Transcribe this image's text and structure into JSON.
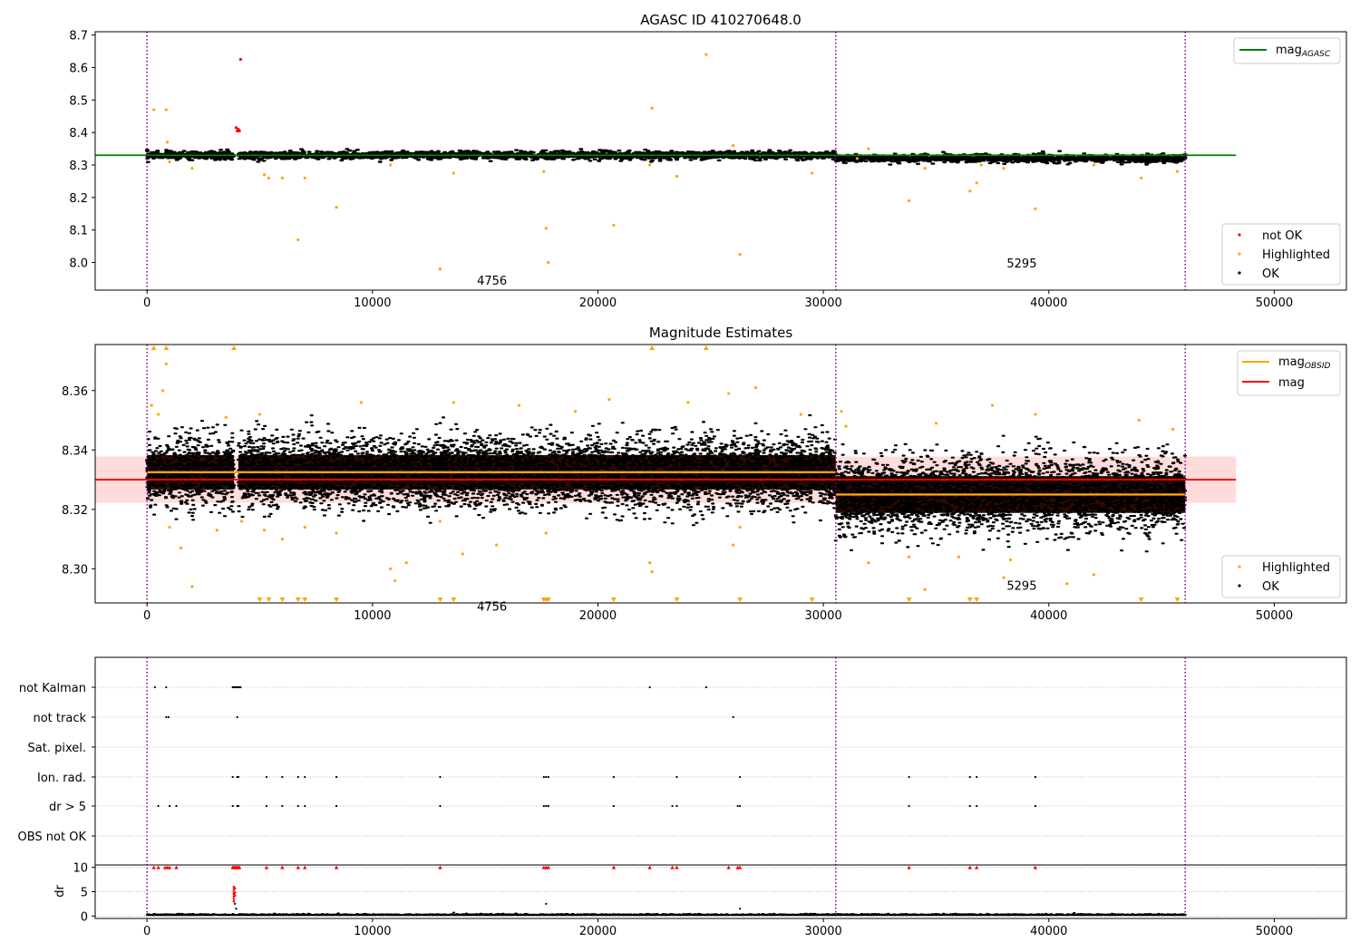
{
  "colors": {
    "ok": "#000000",
    "highlighted": "#ffa500",
    "not_ok": "#ff0000",
    "mag_agasc": "#008000",
    "mag_obsid": "#ffa500",
    "mag": "#ff0000",
    "band": "#ffc0c0",
    "vline": "#800080",
    "grid": "#b0b0b0"
  },
  "chart_data": [
    {
      "type": "scatter",
      "title": "AGASC ID 410270648.0",
      "xlim": [
        -2300,
        53200
      ],
      "ylim": [
        7.915,
        8.71
      ],
      "x_ticks": [
        0,
        10000,
        20000,
        30000,
        40000,
        50000
      ],
      "y_ticks": [
        8.0,
        8.1,
        8.2,
        8.3,
        8.4,
        8.5,
        8.6,
        8.7
      ],
      "obs_boundaries": [
        0,
        30550,
        46050
      ],
      "obs_annotations": [
        {
          "x": 15300,
          "y": 7.945,
          "text": "4756"
        },
        {
          "x": 38800,
          "y": 7.998,
          "text": "5295"
        }
      ],
      "lines": [
        {
          "name": "mag_AGASC",
          "value": 8.33,
          "x_range": [
            -2300,
            48300
          ]
        }
      ],
      "ok_band": {
        "segments": [
          {
            "x": [
              0,
              3850
            ],
            "y": [
              8.315,
              8.345
            ]
          },
          {
            "x": [
              4050,
              30550
            ],
            "y": [
              8.315,
              8.345
            ]
          },
          {
            "x": [
              30550,
              46050
            ],
            "y": [
              8.305,
              8.335
            ]
          }
        ]
      },
      "not_ok": [
        [
          4000,
          8.405
        ],
        [
          4050,
          8.41
        ],
        [
          4100,
          8.405
        ],
        [
          4150,
          8.625
        ],
        [
          3950,
          8.415
        ]
      ],
      "highlighted": [
        [
          300,
          8.47
        ],
        [
          850,
          8.47
        ],
        [
          900,
          8.37
        ],
        [
          1000,
          8.31
        ],
        [
          2000,
          8.29
        ],
        [
          5200,
          8.27
        ],
        [
          5400,
          8.26
        ],
        [
          6000,
          8.26
        ],
        [
          6700,
          8.07
        ],
        [
          7000,
          8.26
        ],
        [
          8400,
          8.17
        ],
        [
          10800,
          8.3
        ],
        [
          13000,
          7.98
        ],
        [
          13600,
          8.275
        ],
        [
          17600,
          8.28
        ],
        [
          17700,
          8.105
        ],
        [
          17800,
          8.0
        ],
        [
          20700,
          8.115
        ],
        [
          22300,
          8.3
        ],
        [
          22400,
          8.475
        ],
        [
          23500,
          8.265
        ],
        [
          24800,
          8.64
        ],
        [
          26000,
          8.36
        ],
        [
          26300,
          8.025
        ],
        [
          29500,
          8.275
        ],
        [
          31500,
          8.32
        ],
        [
          32000,
          8.35
        ],
        [
          33800,
          8.19
        ],
        [
          34500,
          8.29
        ],
        [
          36500,
          8.22
        ],
        [
          36800,
          8.245
        ],
        [
          37000,
          8.3
        ],
        [
          38000,
          8.29
        ],
        [
          39400,
          8.165
        ],
        [
          42000,
          8.3
        ],
        [
          44100,
          8.26
        ],
        [
          45700,
          8.28
        ]
      ],
      "legends": [
        {
          "placement": "top-right",
          "entries": [
            {
              "label": "mag",
              "subscript": "AGASC"
            }
          ]
        },
        {
          "placement": "bottom-right",
          "entries": [
            {
              "label": "not OK"
            },
            {
              "label": "Highlighted"
            },
            {
              "label": "OK"
            }
          ]
        }
      ]
    },
    {
      "type": "scatter",
      "title": "Magnitude Estimates",
      "xlim": [
        -2300,
        53200
      ],
      "ylim": [
        8.2885,
        8.3755
      ],
      "x_ticks": [
        0,
        10000,
        20000,
        30000,
        40000,
        50000
      ],
      "y_ticks": [
        8.3,
        8.32,
        8.34,
        8.36
      ],
      "y_tick_labels": [
        "8.30",
        "8.32",
        "8.34",
        "8.36"
      ],
      "obs_boundaries": [
        0,
        30550,
        46050
      ],
      "obs_annotations": [
        {
          "x": 15300,
          "y": 8.2875,
          "text": "4756"
        },
        {
          "x": 38800,
          "y": 8.2945,
          "text": "5295"
        }
      ],
      "band": {
        "x": [
          -2300,
          48300
        ],
        "y": [
          8.3222,
          8.3378
        ]
      },
      "lines": [
        {
          "name": "mag",
          "value": 8.33,
          "x_range": [
            -2300,
            48300
          ]
        }
      ],
      "obsid_mag": [
        {
          "x": [
            0,
            30550
          ],
          "value": 8.3325
        },
        {
          "x": [
            30550,
            46050
          ],
          "value": 8.325
        }
      ],
      "ok_clouds": [
        {
          "x": [
            0,
            3850
          ],
          "center": 8.3325,
          "sigma": 0.0058,
          "min": 8.313,
          "max": 8.352
        },
        {
          "x": [
            4050,
            30550
          ],
          "center": 8.3325,
          "sigma": 0.0058,
          "min": 8.313,
          "max": 8.352
        },
        {
          "x": [
            30550,
            46050
          ],
          "center": 8.325,
          "sigma": 0.0062,
          "min": 8.305,
          "max": 8.347
        }
      ],
      "highlighted": [
        [
          200,
          8.355
        ],
        [
          500,
          8.352
        ],
        [
          700,
          8.36
        ],
        [
          850,
          8.369
        ],
        [
          1000,
          8.314
        ],
        [
          1500,
          8.307
        ],
        [
          2000,
          8.294
        ],
        [
          3100,
          8.313
        ],
        [
          3500,
          8.351
        ],
        [
          4200,
          8.316
        ],
        [
          5000,
          8.352
        ],
        [
          5200,
          8.313
        ],
        [
          6000,
          8.31
        ],
        [
          7000,
          8.314
        ],
        [
          8400,
          8.312
        ],
        [
          9500,
          8.356
        ],
        [
          10800,
          8.3
        ],
        [
          11000,
          8.296
        ],
        [
          11500,
          8.302
        ],
        [
          13000,
          8.316
        ],
        [
          13600,
          8.356
        ],
        [
          14000,
          8.305
        ],
        [
          15500,
          8.308
        ],
        [
          16500,
          8.355
        ],
        [
          17700,
          8.312
        ],
        [
          19000,
          8.353
        ],
        [
          20500,
          8.357
        ],
        [
          22300,
          8.302
        ],
        [
          22400,
          8.299
        ],
        [
          24000,
          8.356
        ],
        [
          25800,
          8.359
        ],
        [
          26000,
          8.308
        ],
        [
          26300,
          8.314
        ],
        [
          27000,
          8.361
        ],
        [
          29000,
          8.352
        ],
        [
          30800,
          8.353
        ],
        [
          31000,
          8.348
        ],
        [
          32000,
          8.302
        ],
        [
          33800,
          8.304
        ],
        [
          34500,
          8.293
        ],
        [
          35000,
          8.349
        ],
        [
          36000,
          8.304
        ],
        [
          37500,
          8.355
        ],
        [
          38000,
          8.297
        ],
        [
          38300,
          8.303
        ],
        [
          39400,
          8.352
        ],
        [
          40800,
          8.295
        ],
        [
          42000,
          8.298
        ],
        [
          44000,
          8.35
        ],
        [
          45500,
          8.347
        ]
      ],
      "highlighted_above": [
        300,
        850,
        3850,
        22400,
        24800
      ],
      "highlighted_below": [
        5000,
        5400,
        6000,
        6700,
        7000,
        8400,
        13000,
        13600,
        17600,
        17700,
        17800,
        20700,
        23500,
        26300,
        29500,
        33800,
        36500,
        36800,
        44100,
        45700
      ],
      "legends": [
        {
          "placement": "top-right",
          "entries": [
            {
              "label": "mag",
              "subscript": "OBSID"
            },
            {
              "label": "mag"
            }
          ]
        },
        {
          "placement": "bottom-right",
          "entries": [
            {
              "label": "Highlighted"
            },
            {
              "label": "OK"
            }
          ]
        }
      ]
    },
    {
      "type": "scatter",
      "title": "",
      "xlim": [
        -2300,
        53200
      ],
      "x_ticks": [
        0,
        10000,
        20000,
        30000,
        40000,
        50000
      ],
      "obs_boundaries": [
        0,
        30550,
        46050
      ],
      "flag_rows": [
        "not Kalman",
        "not track",
        "Sat. pixel.",
        "Ion. rad.",
        "dr > 5",
        "OBS not OK"
      ],
      "flags": {
        "not Kalman": [
          350,
          850,
          3800,
          3850,
          3900,
          3950,
          4000,
          4050,
          4100,
          4150,
          22300,
          24800
        ],
        "not track": [
          850,
          950,
          4000,
          26000
        ],
        "Sat. pixel.": [],
        "Ion. rad.": [
          3800,
          4000,
          4050,
          5300,
          6000,
          6700,
          7000,
          8400,
          13000,
          17600,
          17700,
          17800,
          20700,
          23500,
          26300,
          33800,
          36500,
          36800,
          39400
        ],
        "dr > 5": [
          500,
          1000,
          1300,
          3800,
          4000,
          4050,
          5300,
          6000,
          6700,
          7000,
          8400,
          13000,
          17600,
          17700,
          17800,
          20700,
          23300,
          23500,
          26200,
          26300,
          33800,
          36500,
          36800,
          39400
        ],
        "OBS not OK": []
      },
      "dr_panel": {
        "ylabel": "dr",
        "ylim": [
          -0.5,
          10.5
        ],
        "y_ticks": [
          0,
          5,
          10
        ],
        "clipped_at_10": [
          300,
          500,
          800,
          900,
          1000,
          1300,
          3800,
          3850,
          3900,
          3950,
          4000,
          4050,
          4100,
          5300,
          6000,
          6700,
          7000,
          8400,
          13000,
          17600,
          17700,
          17800,
          20700,
          22300,
          23300,
          23500,
          25800,
          26200,
          26300,
          33800,
          36500,
          36800,
          39400
        ],
        "spike": [
          [
            3850,
            6.0
          ],
          [
            3850,
            5.5
          ],
          [
            3850,
            5.0
          ],
          [
            3850,
            4.5
          ],
          [
            3850,
            4.0
          ],
          [
            3850,
            3.5
          ],
          [
            3850,
            3.0
          ],
          [
            3900,
            5.7
          ],
          [
            3900,
            4.8
          ],
          [
            3900,
            4.2
          ]
        ],
        "spike_ok": [
          [
            3900,
            2.5
          ],
          [
            3950,
            1.5
          ],
          [
            17700,
            2.5
          ],
          [
            26300,
            1.5
          ]
        ],
        "baseline": {
          "x": [
            0,
            46050
          ],
          "value": 0.15
        }
      }
    }
  ]
}
